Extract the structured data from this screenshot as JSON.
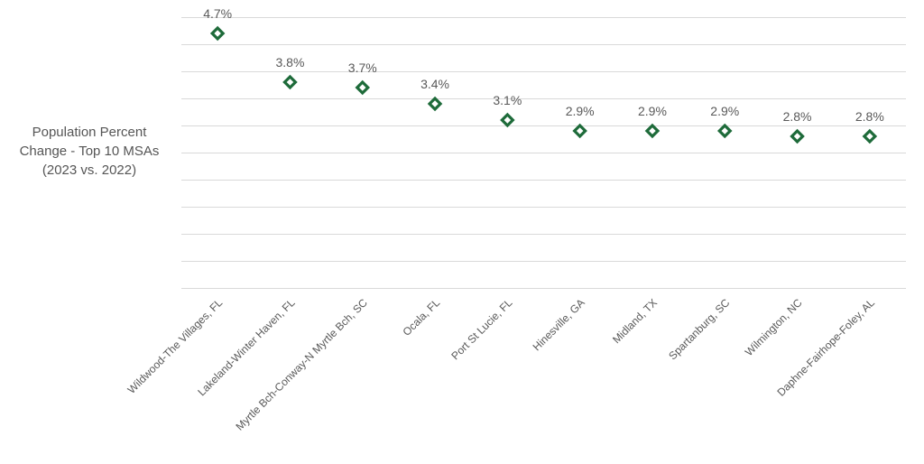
{
  "chart_data": {
    "type": "scatter",
    "ylabel": [
      "Population Percent",
      "Change - Top 10 MSAs",
      "(2023 vs. 2022)"
    ],
    "categories": [
      "Wildwood-The Villages, FL",
      "Lakeland-Winter Haven, FL",
      "Myrtle Bch-Conway-N Myrtle Bch, SC",
      "Ocala, FL",
      "Port St Lucie, FL",
      "Hinesville, GA",
      "Midland, TX",
      "Spartanburg, SC",
      "Wilmington, NC",
      "Daphne-Fairhope-Foley, AL"
    ],
    "values": [
      4.7,
      3.8,
      3.7,
      3.4,
      3.1,
      2.9,
      2.9,
      2.9,
      2.8,
      2.8
    ],
    "data_labels": [
      "4.7%",
      "3.8%",
      "3.7%",
      "3.4%",
      "3.1%",
      "2.9%",
      "2.9%",
      "2.9%",
      "2.8%",
      "2.8%"
    ],
    "ylim": [
      0,
      5
    ],
    "grid": true,
    "legend": "none",
    "marker": "diamond",
    "colors": {
      "marker": "#1e6b3a",
      "grid": "#d9d9d9",
      "text": "#595959"
    }
  }
}
